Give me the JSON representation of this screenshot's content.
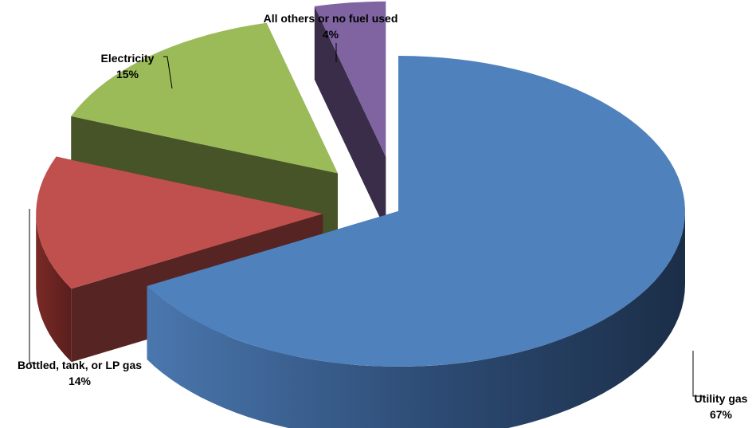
{
  "chart_data": {
    "type": "pie",
    "style": "3d-exploded",
    "title": "",
    "slices": [
      {
        "name": "Utility gas",
        "value": 67,
        "label": "67%",
        "color": "#4F81BD"
      },
      {
        "name": "Bottled, tank, or LP gas",
        "value": 14,
        "label": "14%",
        "color": "#C0504D"
      },
      {
        "name": "Electricity",
        "value": 15,
        "label": "15%",
        "color": "#9BBB59"
      },
      {
        "name": "All others or no fuel used",
        "value": 4,
        "label": "4%",
        "color": "#8064A2"
      }
    ],
    "legend": "none"
  }
}
